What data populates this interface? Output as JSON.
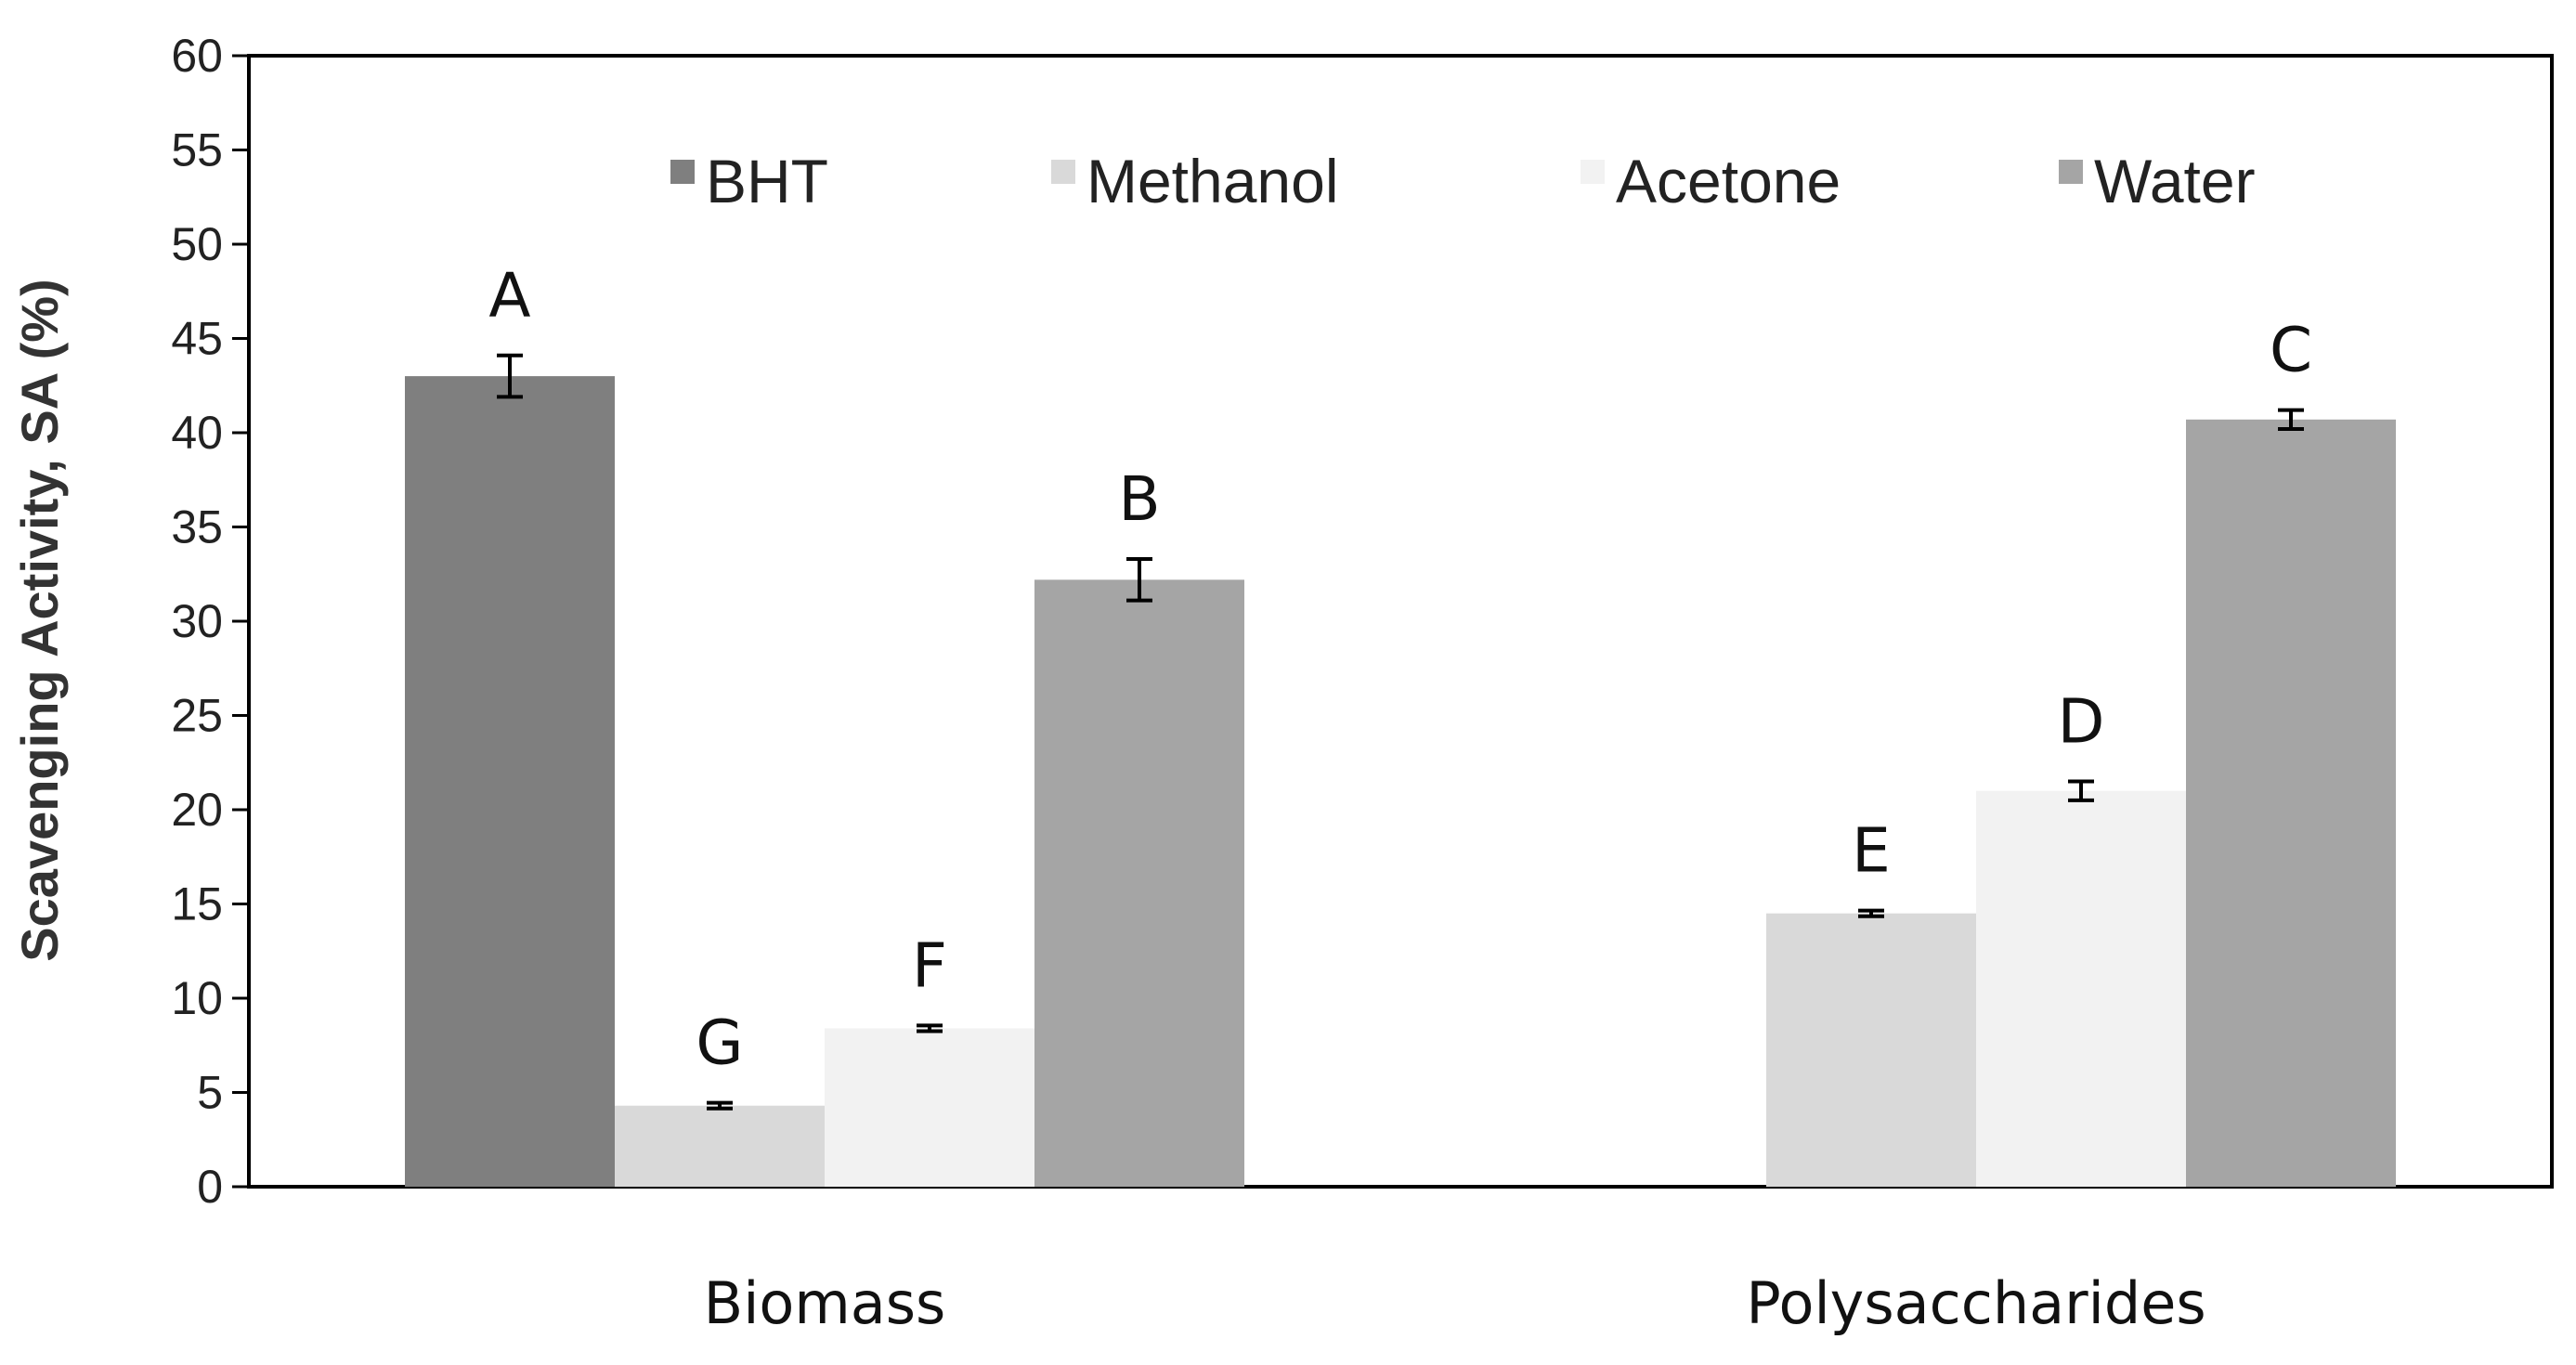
{
  "chart_data": {
    "type": "bar",
    "title": "",
    "xlabel": "",
    "ylabel": "Scavenging Activity,  SA (%)",
    "ylim": [
      0,
      60
    ],
    "yticks": [
      "0",
      "5",
      "10",
      "15",
      "20",
      "25",
      "30",
      "35",
      "40",
      "45",
      "50",
      "55",
      "60"
    ],
    "grid": false,
    "legend_position": "top",
    "categories": [
      "Biomass",
      "Polysaccharides"
    ],
    "series": [
      {
        "name": "BHT",
        "color": "#7f7f7f",
        "values": [
          43.0,
          null
        ],
        "errors": [
          1.1,
          null
        ],
        "labels": [
          "A",
          ""
        ]
      },
      {
        "name": "Methanol",
        "color": "#d9d9d9",
        "values": [
          4.3,
          14.5
        ],
        "errors": [
          0.15,
          0.15
        ],
        "labels": [
          "G",
          "E"
        ]
      },
      {
        "name": "Acetone",
        "color": "#f2f2f2",
        "values": [
          8.4,
          21.0
        ],
        "errors": [
          0.15,
          0.5
        ],
        "labels": [
          "F",
          "D"
        ]
      },
      {
        "name": "Water",
        "color": "#a5a5a5",
        "values": [
          32.2,
          40.7
        ],
        "errors": [
          1.1,
          0.5
        ],
        "labels": [
          "B",
          "C"
        ]
      }
    ]
  }
}
